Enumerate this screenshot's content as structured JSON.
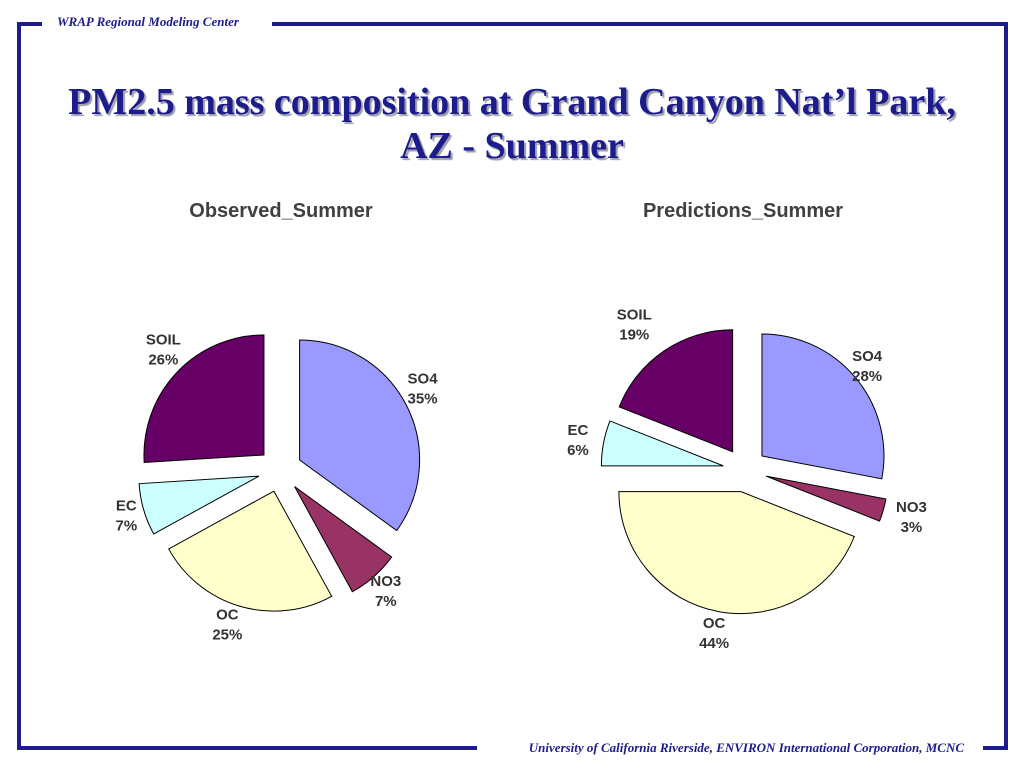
{
  "header": {
    "text": "WRAP Regional Modeling Center"
  },
  "footer": {
    "text": "University of California Riverside, ENVIRON International Corporation, MCNC"
  },
  "slide": {
    "title_line1": "PM2.5 mass composition at Grand Canyon Nat’l Park,",
    "title_line2": "AZ - Summer"
  },
  "colors": {
    "frame": "#1c1c8c",
    "SO4": "#9999ff",
    "NO3": "#993366",
    "OC": "#ffffcc",
    "EC": "#ccffff",
    "SOIL": "#660066"
  },
  "chart_data": [
    {
      "type": "pie",
      "title": "Observed_Summer",
      "categories": [
        "SO4",
        "NO3",
        "OC",
        "EC",
        "SOIL"
      ],
      "values": [
        35,
        7,
        25,
        7,
        26
      ],
      "labels": [
        "35%",
        "7%",
        "25%",
        "7%",
        "26%"
      ],
      "exploded": true
    },
    {
      "type": "pie",
      "title": "Predictions_Summer",
      "categories": [
        "SO4",
        "NO3",
        "OC",
        "EC",
        "SOIL"
      ],
      "values": [
        28,
        3,
        44,
        6,
        19
      ],
      "labels": [
        "28%",
        "3%",
        "44%",
        "6%",
        "19%"
      ],
      "exploded": true
    }
  ]
}
